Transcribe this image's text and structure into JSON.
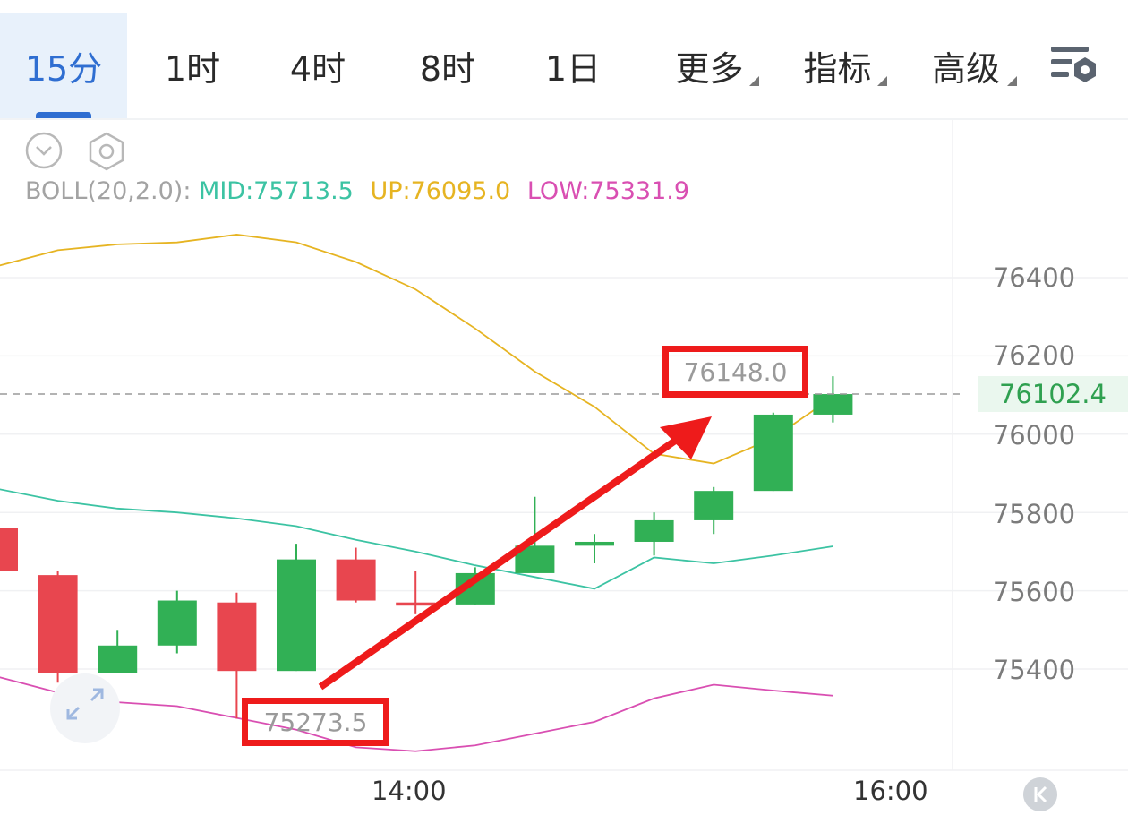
{
  "tabs": [
    {
      "label": "15分",
      "active": true
    },
    {
      "label": "1时"
    },
    {
      "label": "4时"
    },
    {
      "label": "8时"
    },
    {
      "label": "1日"
    },
    {
      "label": "更多",
      "dropdown": true
    },
    {
      "label": "指标",
      "dropdown": true
    },
    {
      "label": "高级",
      "dropdown": true
    }
  ],
  "toolbar": {
    "settings_icon": "chart-settings-icon",
    "collapse_icon": "chevron-down-circle-icon",
    "gear_icon": "hexagon-gear-icon",
    "expand_icon": "expand-arrows-icon",
    "scroll_latest_icon": "scroll-to-latest-icon"
  },
  "indicator": {
    "label": "BOLL(20,2.0):",
    "mid": "MID:75713.5",
    "up": "UP:76095.0",
    "low": "LOW:75331.9",
    "colors": {
      "mid": "#3cc3a3",
      "up": "#e6b422",
      "low": "#d94fb2"
    }
  },
  "y_axis": {
    "ticks": [
      "76400",
      "76200",
      "76000",
      "75800",
      "75600",
      "75400"
    ]
  },
  "x_axis": {
    "ticks": [
      "14:00",
      "16:00"
    ]
  },
  "current_price": "76102.4",
  "annotations": {
    "high": "76148.0",
    "low": "75273.5"
  },
  "colors": {
    "up_candle": "#31b055",
    "down_candle": "#e8464f",
    "arrow": "#ee1b1b",
    "accent": "#2f6ed1"
  },
  "chart_data": {
    "type": "candlestick",
    "interval": "15分",
    "ylim": [
      75100,
      76520
    ],
    "candles": [
      {
        "open": 75760,
        "high": 75760,
        "low": 75650,
        "close": 75650
      },
      {
        "open": 75640,
        "high": 75650,
        "low": 75365,
        "close": 75390
      },
      {
        "open": 75390,
        "high": 75500,
        "low": 75390,
        "close": 75460
      },
      {
        "open": 75460,
        "high": 75600,
        "low": 75440,
        "close": 75575
      },
      {
        "open": 75570,
        "high": 75595,
        "low": 75273.5,
        "close": 75395
      },
      {
        "open": 75395,
        "high": 75720,
        "low": 75395,
        "close": 75680
      },
      {
        "open": 75680,
        "high": 75710,
        "low": 75570,
        "close": 75575
      },
      {
        "open": 75570,
        "high": 75650,
        "low": 75540,
        "close": 75562
      },
      {
        "open": 75565,
        "high": 75660,
        "low": 75565,
        "close": 75645
      },
      {
        "open": 75645,
        "high": 75840,
        "low": 75645,
        "close": 75715
      },
      {
        "open": 75715,
        "high": 75745,
        "low": 75670,
        "close": 75725
      },
      {
        "open": 75725,
        "high": 75800,
        "low": 75690,
        "close": 75780
      },
      {
        "open": 75780,
        "high": 75865,
        "low": 75745,
        "close": 75855
      },
      {
        "open": 75855,
        "high": 76055,
        "low": 75855,
        "close": 76050
      },
      {
        "open": 76050,
        "high": 76148,
        "low": 76030,
        "close": 76102.4
      }
    ],
    "boll": {
      "up": [
        76430,
        76470,
        76485,
        76490,
        76510,
        76490,
        76440,
        76370,
        76270,
        76160,
        76070,
        75950,
        75925,
        75990,
        76095
      ],
      "mid": [
        75860,
        75830,
        75810,
        75800,
        75785,
        75765,
        75730,
        75700,
        75665,
        75635,
        75605,
        75685,
        75670,
        75690,
        75713.5
      ],
      "low": [
        75380,
        75340,
        75315,
        75305,
        75275,
        75245,
        75200,
        75190,
        75205,
        75235,
        75265,
        75325,
        75360,
        75345,
        75331.9
      ]
    }
  }
}
